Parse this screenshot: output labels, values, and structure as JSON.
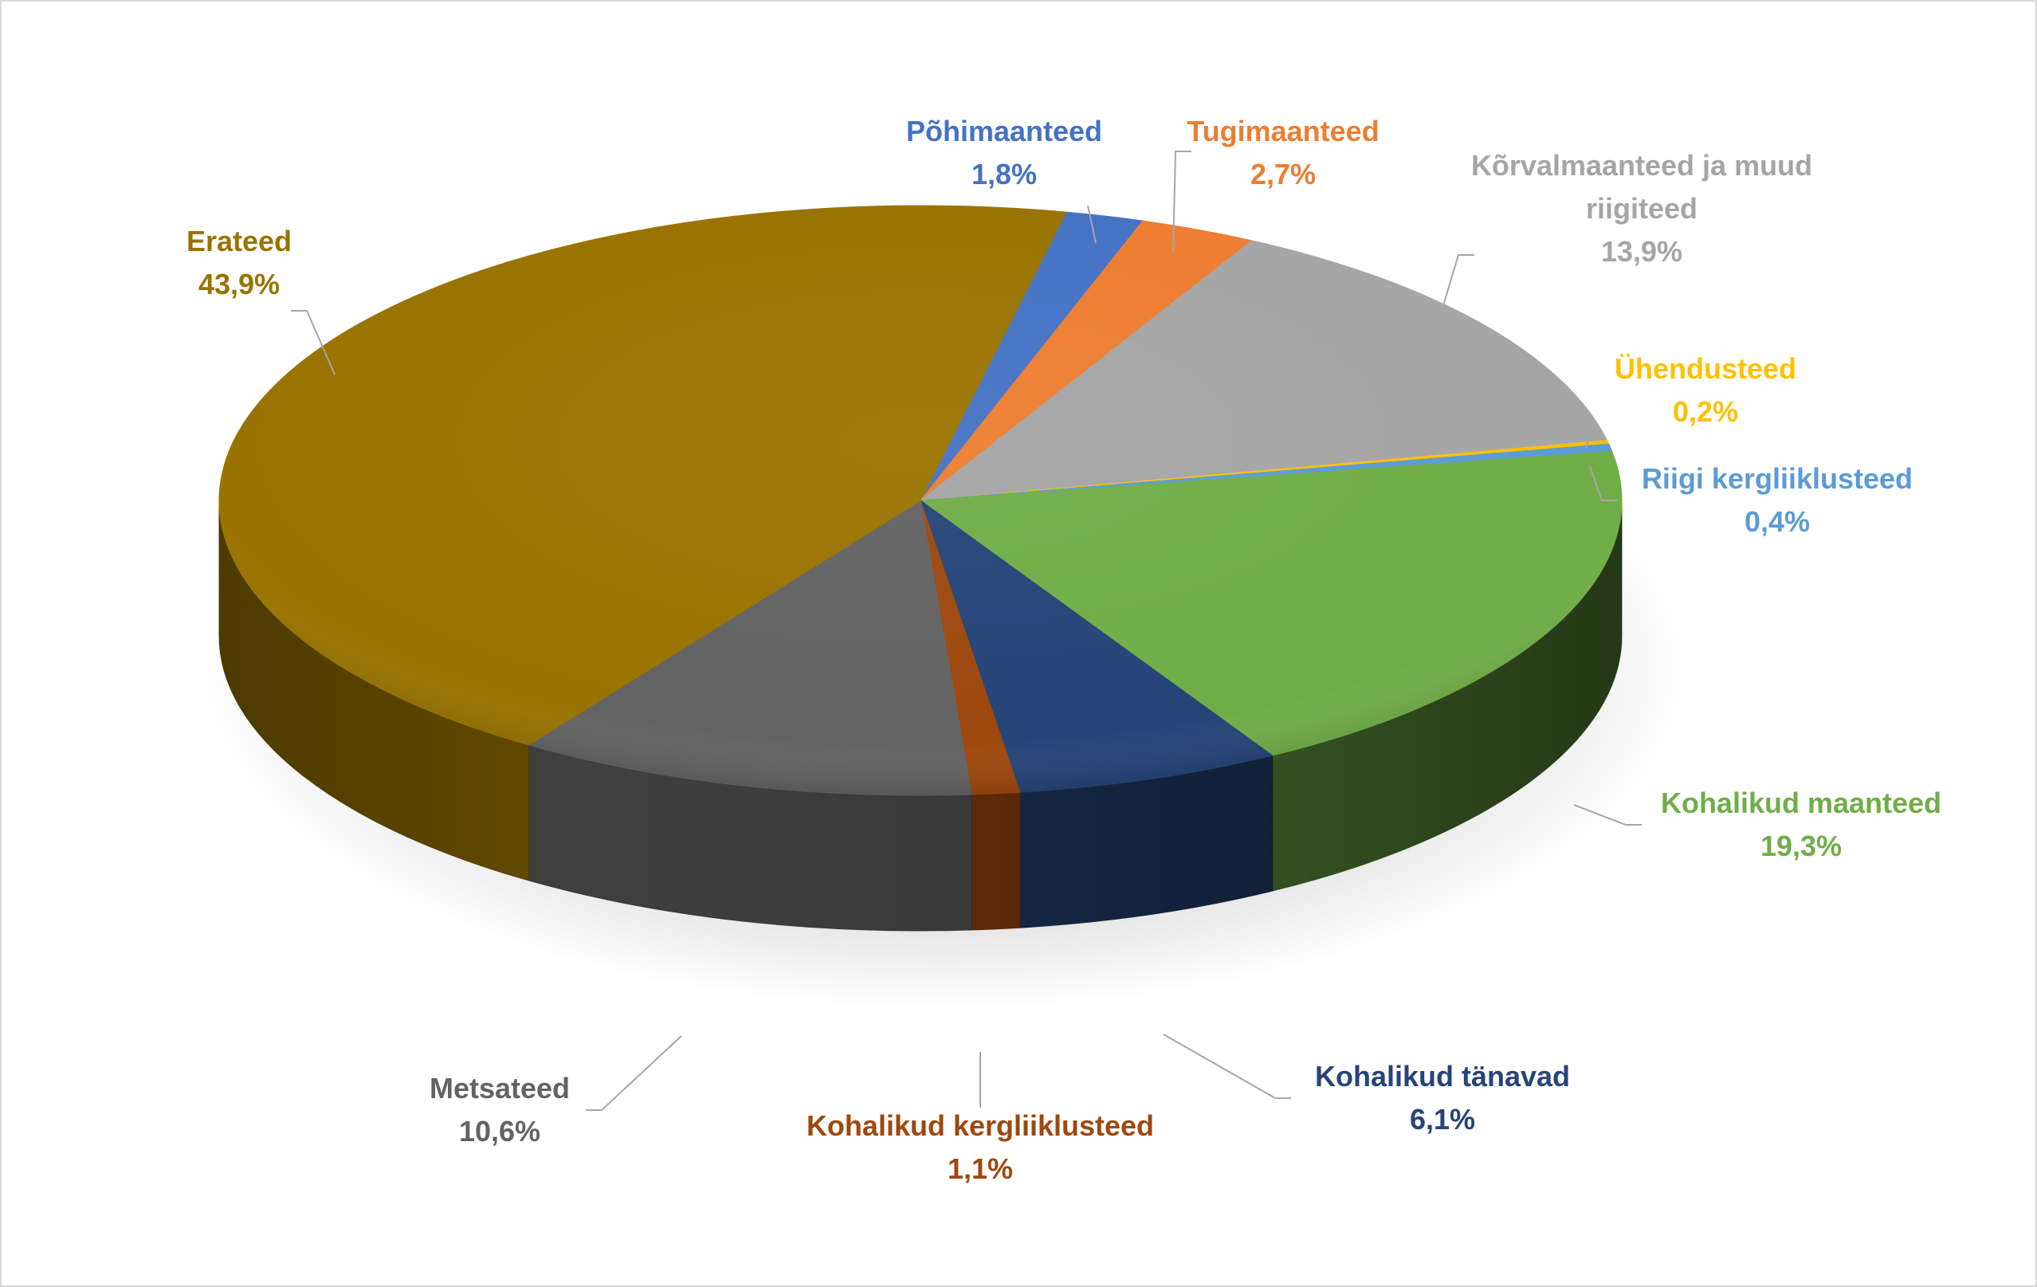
{
  "chart_data": {
    "type": "pie",
    "title": "",
    "legend": "none",
    "slices": [
      {
        "label": "Põhimaanteed",
        "value": 1.8,
        "value_label": "1,8%",
        "color": "#4472c4",
        "label_color": "#4472c4"
      },
      {
        "label": "Tugimaanteed",
        "value": 2.7,
        "value_label": "2,7%",
        "color": "#ed7d31",
        "label_color": "#ed7d31"
      },
      {
        "label": "Kõrvalmaanteed ja muud riigiteed",
        "value": 13.9,
        "value_label": "13,9%",
        "color": "#a5a5a5",
        "label_color": "#a5a5a5"
      },
      {
        "label": "Ühendusteed",
        "value": 0.2,
        "value_label": "0,2%",
        "color": "#ffc000",
        "label_color": "#ffc000"
      },
      {
        "label": "Riigi kergliiklusteed",
        "value": 0.4,
        "value_label": "0,4%",
        "color": "#5b9bd5",
        "label_color": "#5b9bd5"
      },
      {
        "label": "Kohalikud maanteed",
        "value": 19.3,
        "value_label": "19,3%",
        "color": "#70ad47",
        "label_color": "#70ad47"
      },
      {
        "label": "Kohalikud tänavad",
        "value": 6.1,
        "value_label": "6,1%",
        "color": "#264478",
        "label_color": "#264478"
      },
      {
        "label": "Kohalikud kergliiklusteed",
        "value": 1.1,
        "value_label": "1,1%",
        "color": "#9e480e",
        "label_color": "#9e480e"
      },
      {
        "label": "Metsateed",
        "value": 10.6,
        "value_label": "10,6%",
        "color": "#636363",
        "label_color": "#636363"
      },
      {
        "label": "Erateed",
        "value": 43.9,
        "value_label": "43,9%",
        "color": "#997300",
        "label_color": "#997300"
      }
    ]
  }
}
